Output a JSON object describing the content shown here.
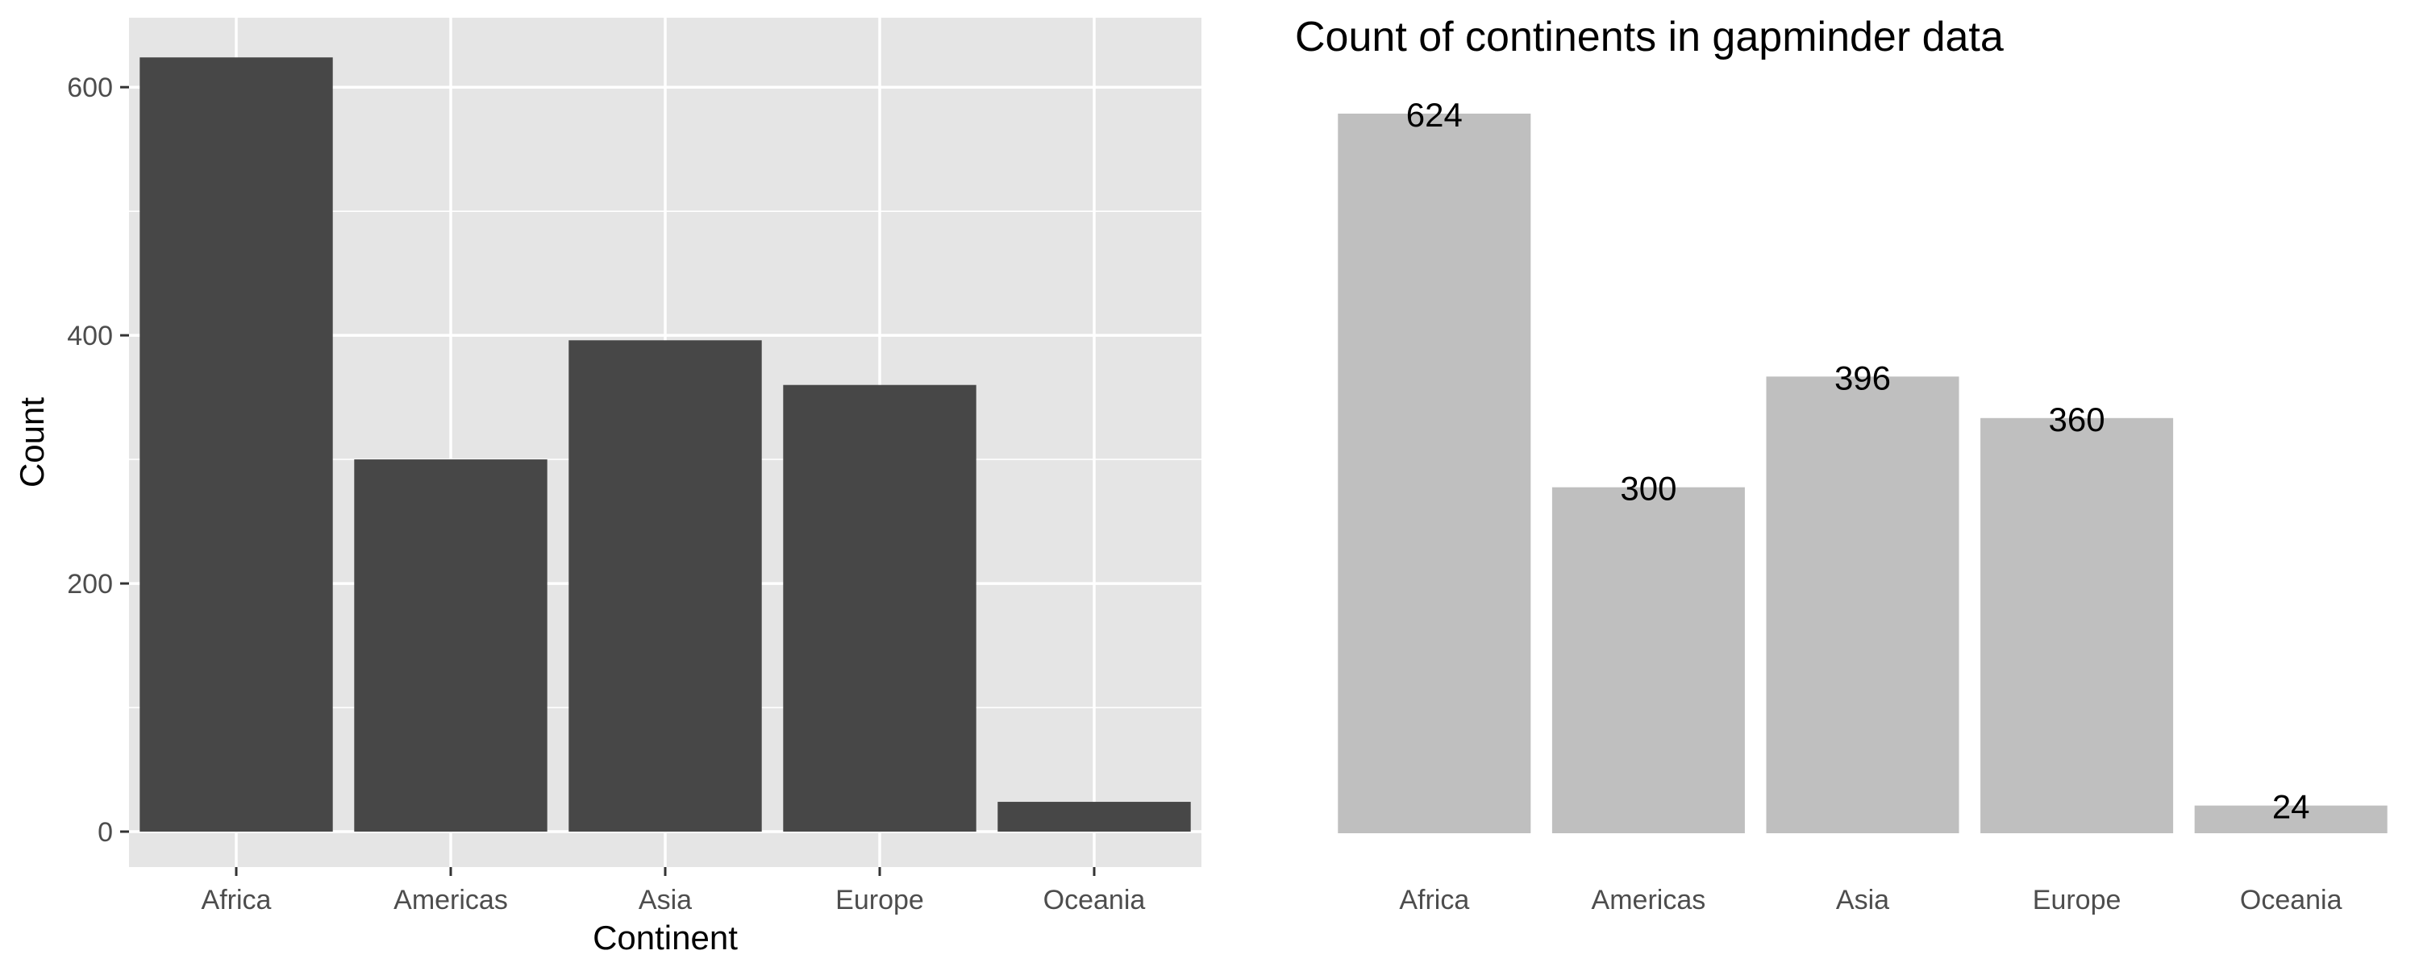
{
  "chart_data": [
    {
      "type": "bar",
      "theme": "ggplot2 grey",
      "title": "",
      "xlabel": "Continent",
      "ylabel": "Count",
      "categories": [
        "Africa",
        "Americas",
        "Asia",
        "Europe",
        "Oceania"
      ],
      "values": [
        624,
        300,
        396,
        360,
        24
      ],
      "ylim": [
        0,
        630
      ],
      "yticks": [
        0,
        200,
        400,
        600
      ],
      "grid": true,
      "colors": {
        "bar": "#474747",
        "panel": "#e5e5e5",
        "grid": "#ffffff"
      }
    },
    {
      "type": "bar",
      "theme": "minimal, no y axis",
      "title": "Count of continents in gapminder data",
      "xlabel": "",
      "ylabel": "",
      "categories": [
        "Africa",
        "Americas",
        "Asia",
        "Europe",
        "Oceania"
      ],
      "values": [
        624,
        300,
        396,
        360,
        24
      ],
      "data_labels": [
        "624",
        "300",
        "396",
        "360",
        "24"
      ],
      "ylim": [
        0,
        624
      ],
      "grid": false,
      "colors": {
        "bar": "#bfbfbf"
      }
    }
  ]
}
